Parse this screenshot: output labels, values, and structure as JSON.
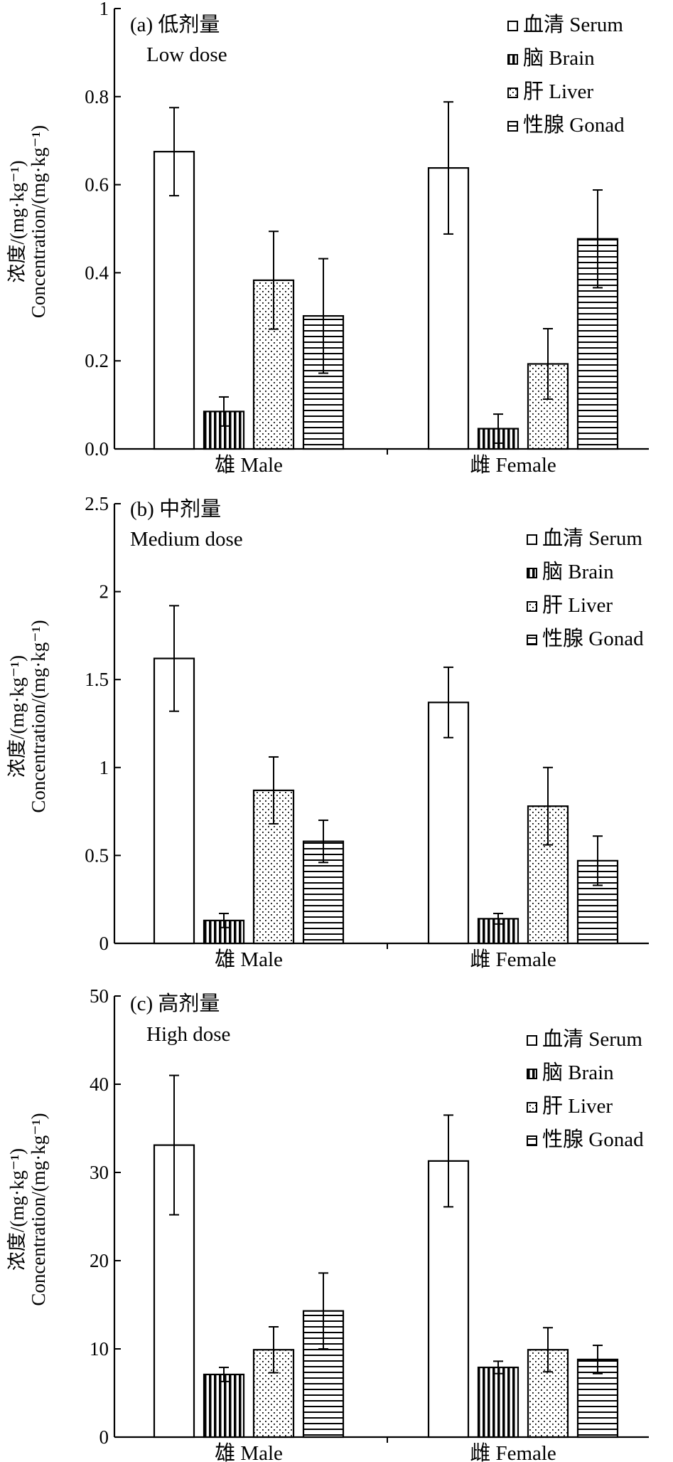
{
  "chart_data": [
    {
      "type": "bar",
      "title": "(a) 低剂量",
      "subtitle": "Low dose",
      "ylabel": [
        "浓度/(mg·kg⁻¹)",
        "Concentration/(mg·kg⁻¹)"
      ],
      "xlabel": "",
      "ylim": [
        0,
        1
      ],
      "yticks": [
        0.0,
        0.2,
        0.4,
        0.6,
        0.8,
        1
      ],
      "ytick_labels": [
        "0.0",
        "0.2",
        "0.4",
        "0.6",
        "0.8",
        "1"
      ],
      "categories": [
        "雄 Male",
        "雌 Female"
      ],
      "legend_position": "top-right",
      "series": [
        {
          "name": "血清 Serum",
          "pattern": "none",
          "values": [
            0.675,
            0.638
          ],
          "errors": [
            0.1,
            0.15
          ]
        },
        {
          "name": "脑 Brain",
          "pattern": "vertical",
          "values": [
            0.085,
            0.046
          ],
          "errors": [
            0.033,
            0.033
          ]
        },
        {
          "name": "肝 Liver",
          "pattern": "dots",
          "values": [
            0.383,
            0.193
          ],
          "errors": [
            0.111,
            0.08
          ]
        },
        {
          "name": "性腺 Gonad",
          "pattern": "horizontal",
          "values": [
            0.302,
            0.477
          ],
          "errors": [
            0.13,
            0.111
          ]
        }
      ]
    },
    {
      "type": "bar",
      "title": "(b) 中剂量",
      "subtitle": "Medium dose",
      "ylabel": [
        "浓度/(mg·kg⁻¹)",
        "Concentration/(mg·kg⁻¹)"
      ],
      "xlabel": "",
      "ylim": [
        0,
        2.5
      ],
      "yticks": [
        0,
        0.5,
        1,
        1.5,
        2,
        2.5
      ],
      "ytick_labels": [
        "0",
        "0.5",
        "1",
        "1.5",
        "2",
        "2.5"
      ],
      "categories": [
        "雄 Male",
        "雌 Female"
      ],
      "legend_position": "top-right",
      "series": [
        {
          "name": "血清 Serum",
          "pattern": "none",
          "values": [
            1.62,
            1.37
          ],
          "errors": [
            0.3,
            0.2
          ]
        },
        {
          "name": "脑 Brain",
          "pattern": "vertical",
          "values": [
            0.13,
            0.14
          ],
          "errors": [
            0.04,
            0.03
          ]
        },
        {
          "name": "肝 Liver",
          "pattern": "dots",
          "values": [
            0.87,
            0.78
          ],
          "errors": [
            0.19,
            0.22
          ]
        },
        {
          "name": "性腺 Gonad",
          "pattern": "horizontal",
          "values": [
            0.58,
            0.47
          ],
          "errors": [
            0.12,
            0.14
          ]
        }
      ]
    },
    {
      "type": "bar",
      "title": "(c) 高剂量",
      "subtitle": "High dose",
      "ylabel": [
        "浓度/(mg·kg⁻¹)",
        "Concentration/(mg·kg⁻¹)"
      ],
      "xlabel": "",
      "ylim": [
        0,
        50
      ],
      "yticks": [
        0,
        10,
        20,
        30,
        40,
        50
      ],
      "ytick_labels": [
        "0",
        "10",
        "20",
        "30",
        "40",
        "50"
      ],
      "categories": [
        "雄 Male",
        "雌 Female"
      ],
      "legend_position": "top-right",
      "series": [
        {
          "name": "血清 Serum",
          "pattern": "none",
          "values": [
            33.1,
            31.3
          ],
          "errors": [
            7.9,
            5.2
          ]
        },
        {
          "name": "脑 Brain",
          "pattern": "vertical",
          "values": [
            7.1,
            7.9
          ],
          "errors": [
            0.8,
            0.7
          ]
        },
        {
          "name": "肝 Liver",
          "pattern": "dots",
          "values": [
            9.9,
            9.9
          ],
          "errors": [
            2.6,
            2.5
          ]
        },
        {
          "name": "性腺 Gonad",
          "pattern": "horizontal",
          "values": [
            14.3,
            8.8
          ],
          "errors": [
            4.3,
            1.6
          ]
        }
      ]
    }
  ]
}
